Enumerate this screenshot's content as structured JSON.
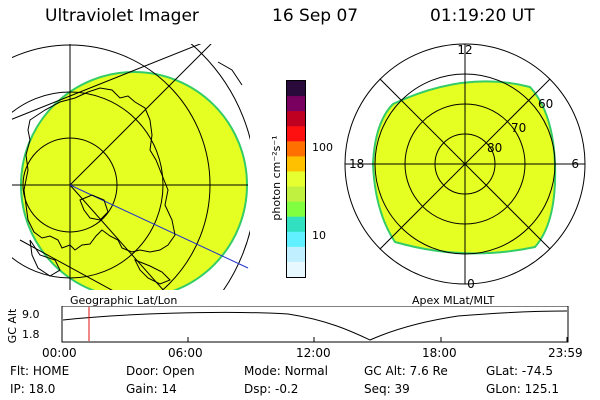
{
  "header": {
    "instrument": "Ultraviolet Imager",
    "date": "16 Sep 07",
    "time": "01:19:20 UT"
  },
  "left_map": {
    "caption": "Geographic Lat/Lon"
  },
  "right_map": {
    "caption": "Apex MLat/MLT",
    "mlt_labels": {
      "top": "12",
      "left": "18",
      "right": "6",
      "bottom": "0"
    },
    "lat_labels": [
      "60",
      "70",
      "80"
    ]
  },
  "colorbar": {
    "unit_label": "photon cm⁻²s⁻¹",
    "tick_100": "100",
    "tick_10": "10",
    "colors": [
      "#2a0a3a",
      "#7a0060",
      "#c00020",
      "#ff1010",
      "#ff7000",
      "#ffc000",
      "#e6ff30",
      "#c0f040",
      "#80ff40",
      "#30e0c0",
      "#60f0ff",
      "#c0f0ff",
      "#e8f8ff"
    ]
  },
  "altitude_plot": {
    "ylabel": "GC Alt",
    "y_ticks": [
      "9.0",
      "1.8"
    ],
    "x_ticks": [
      "00:00",
      "06:00",
      "12:00",
      "18:00",
      "23:59"
    ]
  },
  "status": {
    "row1": [
      {
        "label": "Flt:",
        "value": "HOME"
      },
      {
        "label": "Door:",
        "value": "Open"
      },
      {
        "label": "Mode:",
        "value": "Normal"
      },
      {
        "label": "GC Alt:",
        "value": "7.6 Re"
      },
      {
        "label": "GLat:",
        "value": "-74.5"
      }
    ],
    "row2": [
      {
        "label": "IP:",
        "value": "18.0"
      },
      {
        "label": "Gain:",
        "value": "14"
      },
      {
        "label": "Dsp:",
        "value": "-0.2"
      },
      {
        "label": "Seq:",
        "value": "39"
      },
      {
        "label": "GLon:",
        "value": "125.1"
      }
    ]
  }
}
